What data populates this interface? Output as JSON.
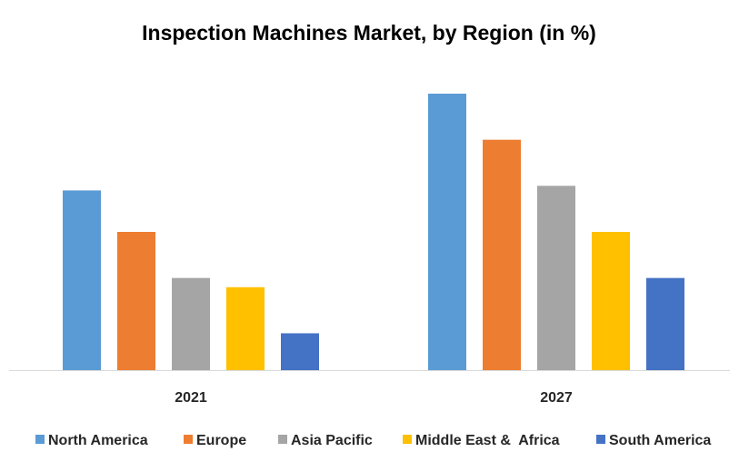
{
  "chart_data": {
    "type": "bar",
    "title": "Inspection Machines Market, by Region (in %)",
    "xlabel": "",
    "ylabel": "",
    "ylim": [
      0,
      60
    ],
    "categories": [
      "2021",
      "2027"
    ],
    "series": [
      {
        "name": "North America",
        "color": "#5B9BD5",
        "values": [
          39,
          60
        ]
      },
      {
        "name": "Europe",
        "color": "#ED7D31",
        "values": [
          30,
          50
        ]
      },
      {
        "name": "Asia Pacific",
        "color": "#A5A5A5",
        "values": [
          20,
          40
        ]
      },
      {
        "name": "Middle East &  Africa",
        "color": "#FFC000",
        "values": [
          18,
          30
        ]
      },
      {
        "name": "South America",
        "color": "#4472C4",
        "values": [
          8,
          20
        ]
      }
    ],
    "grid": false,
    "legend_position": "bottom"
  }
}
